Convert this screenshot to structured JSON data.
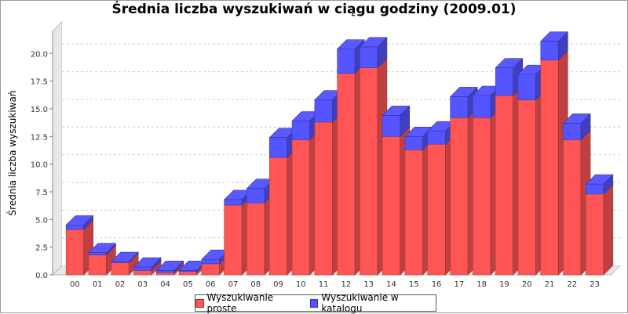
{
  "chart_data": {
    "type": "bar",
    "stacked": true,
    "three_d": true,
    "title": "Średnia liczba wyszukiwań w ciągu godziny (2009.01)",
    "xlabel": "",
    "ylabel": "Średnia liczba wyszukiwań",
    "ylim": [
      0,
      22
    ],
    "yticks": [
      "0.0",
      "2.5",
      "5.0",
      "7.5",
      "10.0",
      "12.5",
      "15.0",
      "17.5",
      "20.0"
    ],
    "grid": true,
    "legend_position": "bottom",
    "categories": [
      "00",
      "01",
      "02",
      "03",
      "04",
      "05",
      "06",
      "07",
      "08",
      "09",
      "10",
      "11",
      "12",
      "13",
      "14",
      "15",
      "16",
      "17",
      "18",
      "19",
      "20",
      "21",
      "22",
      "23"
    ],
    "series": [
      {
        "name": "Wyszukiwanie proste",
        "color": "#ff5555",
        "values": [
          4.1,
          1.8,
          1.1,
          0.4,
          0.2,
          0.3,
          1.0,
          6.3,
          6.5,
          10.6,
          12.2,
          13.8,
          18.2,
          18.7,
          12.5,
          11.3,
          11.8,
          14.2,
          14.2,
          16.2,
          15.8,
          19.4,
          12.2,
          7.3
        ]
      },
      {
        "name": "Wyszukiwanie w katalogu",
        "color": "#5555ff",
        "values": [
          0.4,
          0.2,
          0.1,
          0.3,
          0.2,
          0.1,
          0.4,
          0.5,
          1.3,
          1.8,
          1.7,
          2.0,
          2.2,
          1.9,
          1.9,
          1.2,
          1.2,
          1.9,
          2.0,
          2.5,
          2.3,
          1.7,
          1.5,
          0.9
        ]
      }
    ]
  }
}
